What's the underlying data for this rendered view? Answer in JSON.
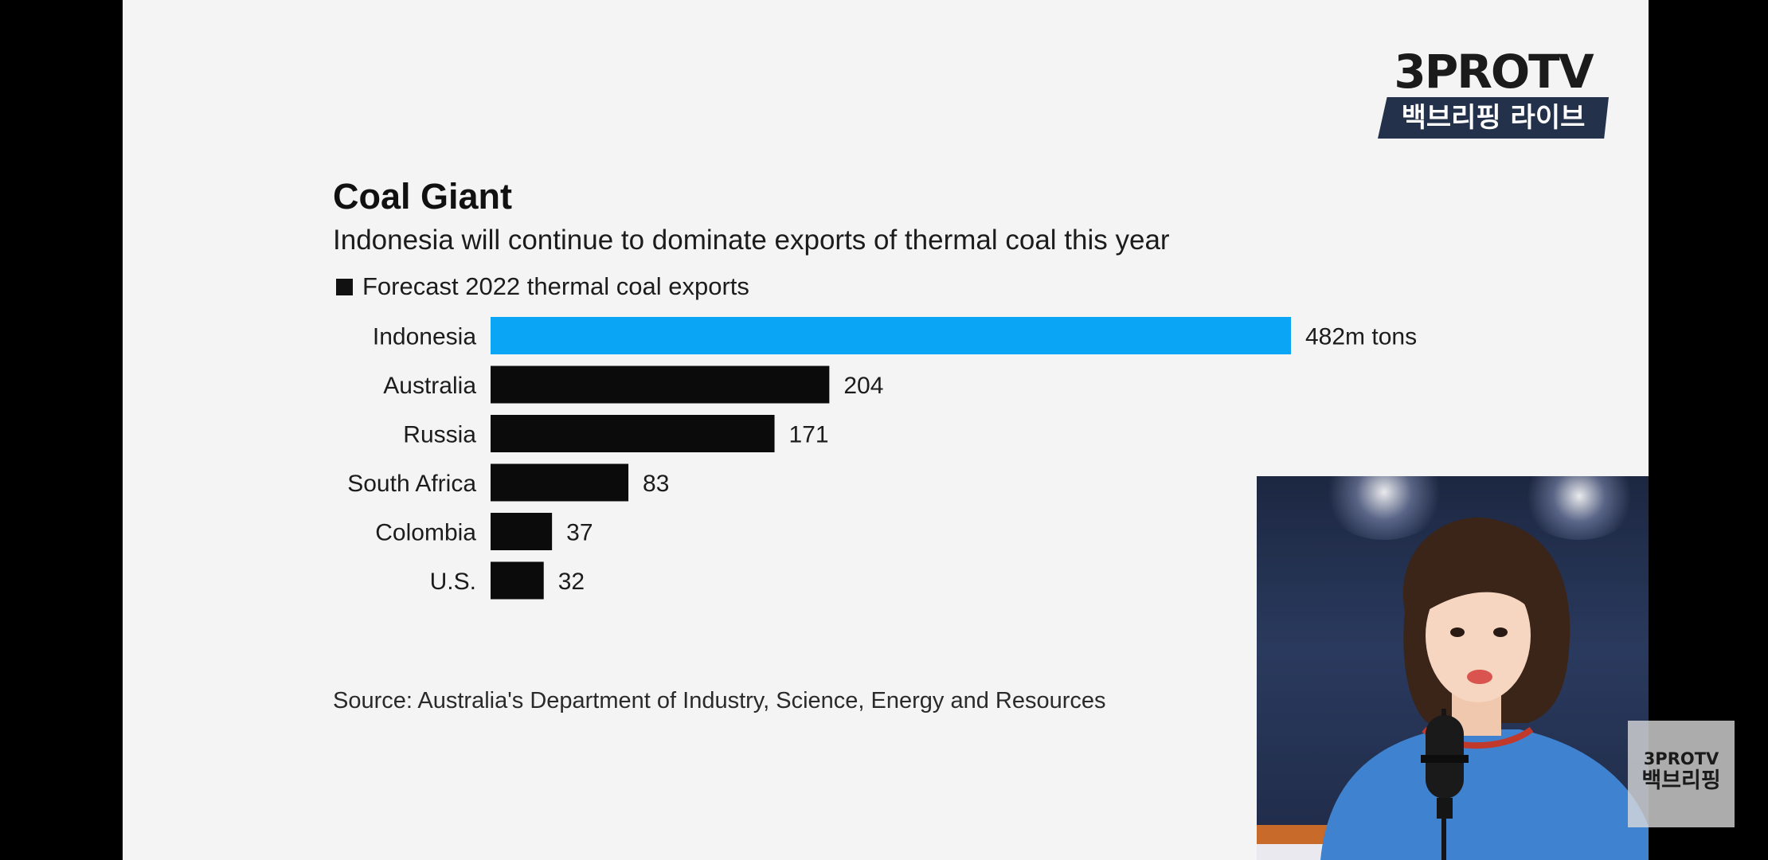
{
  "logo": {
    "top_text": "3PROTV",
    "bottom_text": "백브리핑 라이브"
  },
  "watermark": {
    "top_text": "3PROTV",
    "bottom_text": "백브리핑"
  },
  "chart": {
    "title": "Coal Giant",
    "subtitle": "Indonesia will continue to dominate exports of thermal coal this year",
    "legend": "Forecast 2022 thermal coal exports",
    "source": "Source: Australia's Department of Industry, Science, Energy and Resources"
  },
  "chart_data": {
    "type": "bar",
    "orientation": "horizontal",
    "title": "Coal Giant",
    "subtitle": "Indonesia will continue to dominate exports of thermal coal this year",
    "categories": [
      "Indonesia",
      "Australia",
      "Russia",
      "South Africa",
      "Colombia",
      "U.S."
    ],
    "series": [
      {
        "name": "Forecast 2022 thermal coal exports",
        "values": [
          482,
          204,
          171,
          83,
          37,
          32
        ],
        "labels": [
          "482m tons",
          "204",
          "171",
          "83",
          "37",
          "32"
        ]
      }
    ],
    "highlight_index": 0,
    "colors": {
      "highlight": "#0aa5f5",
      "default": "#0b0b0b"
    },
    "grid": false,
    "legend_position": "top-left",
    "xlim": [
      0,
      482
    ]
  }
}
